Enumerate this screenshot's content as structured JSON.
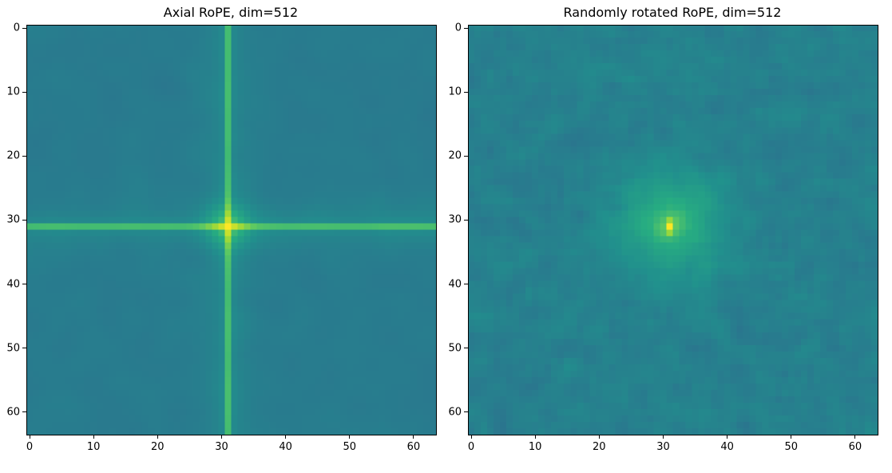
{
  "chart_data": [
    {
      "type": "heatmap",
      "title": "Axial RoPE, dim=512",
      "xlabel": "",
      "ylabel": "",
      "grid_size": [
        64,
        64
      ],
      "xlim": [
        0,
        63
      ],
      "ylim": [
        63,
        0
      ],
      "xticks": [
        0,
        10,
        20,
        30,
        40,
        50,
        60
      ],
      "yticks": [
        0,
        10,
        20,
        30,
        40,
        50,
        60
      ],
      "colormap": "viridis",
      "peak": {
        "x": 31,
        "y": 31
      },
      "pattern": "axial cross",
      "grid": false
    },
    {
      "type": "heatmap",
      "title": "Randomly rotated RoPE, dim=512",
      "xlabel": "",
      "ylabel": "",
      "grid_size": [
        64,
        64
      ],
      "xlim": [
        0,
        63
      ],
      "ylim": [
        63,
        0
      ],
      "xticks": [
        0,
        10,
        20,
        30,
        40,
        50,
        60
      ],
      "yticks": [
        0,
        10,
        20,
        30,
        40,
        50,
        60
      ],
      "colormap": "viridis",
      "peak": {
        "x": 31,
        "y": 31
      },
      "pattern": "radial peak with noise",
      "grid": false
    }
  ]
}
